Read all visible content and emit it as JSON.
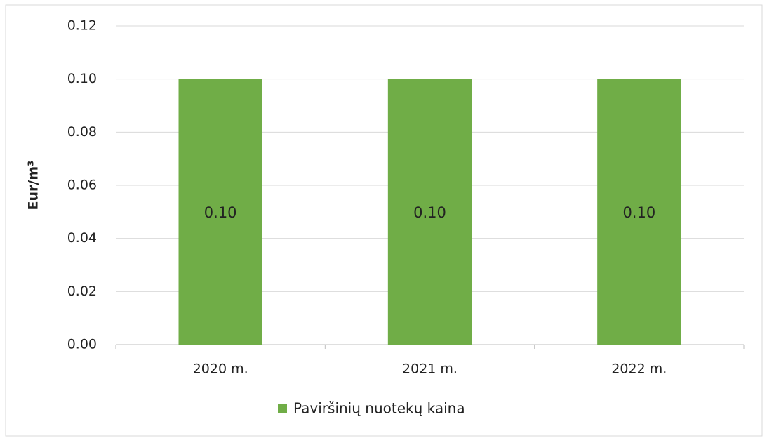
{
  "chart_data": {
    "type": "bar",
    "categories": [
      "2020 m.",
      "2021 m.",
      "2022 m."
    ],
    "series": [
      {
        "name": "Paviršinių nuotekų kaina",
        "color": "#70ad47",
        "values": [
          0.1,
          0.1,
          0.1
        ],
        "value_labels": [
          "0.10",
          "0.10",
          "0.10"
        ]
      }
    ],
    "y_label": "Eur/m³",
    "ylim": [
      0,
      0.12
    ],
    "yticks": [
      {
        "value": 0,
        "label": "0.00"
      },
      0.02,
      0.04,
      0.06,
      0.08,
      {
        "value": 0.1,
        "label": "0.10"
      },
      0.12
    ],
    "grid": true,
    "legend": "bottom"
  }
}
